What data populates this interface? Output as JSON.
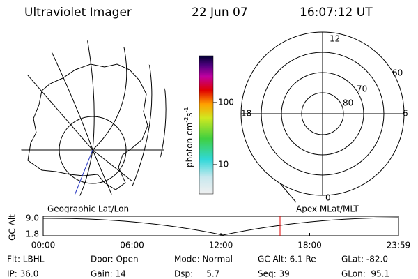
{
  "header": {
    "title": "Ultraviolet Imager",
    "date": "22 Jun 07",
    "time": "16:07:12 UT"
  },
  "polar_plot": {
    "labels": [
      "12",
      "60",
      "70",
      "80",
      "18",
      "6",
      "0"
    ]
  },
  "colorbar": {
    "label": "photon cm",
    "exp1": "-2",
    "unit2": "s",
    "exp2": "-1",
    "ticks": [
      "100",
      "10"
    ]
  },
  "altitude_plot": {
    "left_title": "Geographic Lat/Lon",
    "right_title": "Apex MLat/MLT",
    "ylabel": "GC Alt",
    "yticks": [
      "9.0",
      "1.8"
    ],
    "xticks": [
      "00:00",
      "06:00",
      "12:00",
      "18:00",
      "23:59"
    ]
  },
  "status": [
    [
      "Flt: LBHL",
      "Door: Open",
      "Mode: Normal",
      "GC Alt: 6.1 Re",
      "GLat: -82.0"
    ],
    [
      "IP: 36.0",
      "Gain: 14",
      "Dsp:     5.7",
      "Seq: 39",
      "GLon:  95.1"
    ]
  ]
}
